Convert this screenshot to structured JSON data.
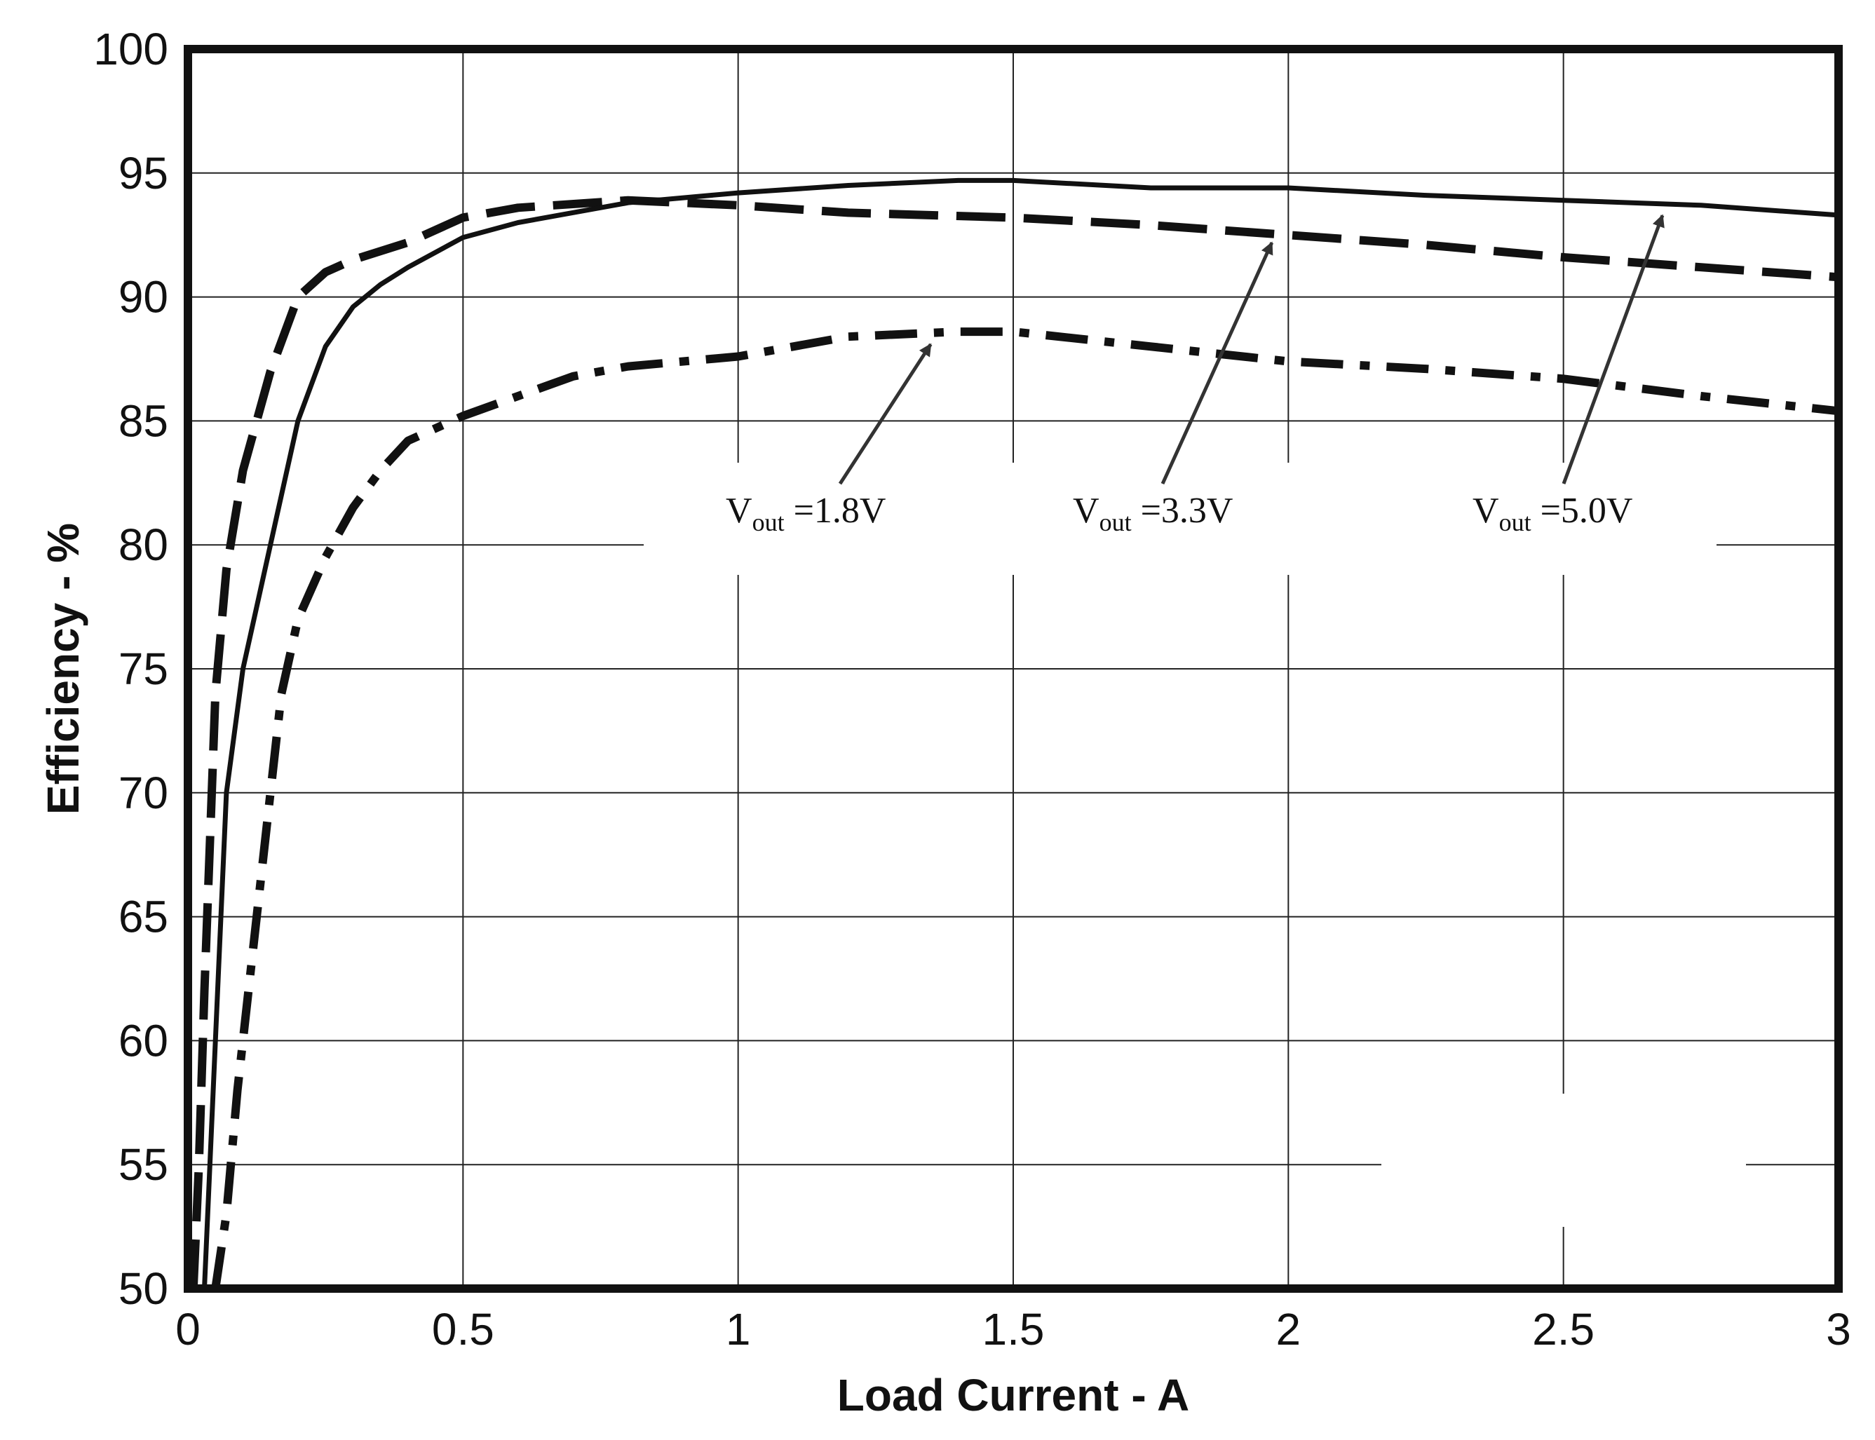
{
  "chart_data": {
    "type": "line",
    "title": "",
    "xlabel": "Load Current - A",
    "ylabel": "Efficiency - %",
    "xlim": [
      0,
      3
    ],
    "ylim": [
      50,
      100
    ],
    "x_ticks": [
      0,
      0.5,
      1,
      1.5,
      2,
      2.5,
      3
    ],
    "x_tick_labels": [
      "0",
      "0.5",
      "1",
      "1.5",
      "2",
      "2.5",
      "3"
    ],
    "y_ticks": [
      50,
      55,
      60,
      65,
      70,
      75,
      80,
      85,
      90,
      95,
      100
    ],
    "y_tick_labels": [
      "50",
      "55",
      "60",
      "65",
      "70",
      "75",
      "80",
      "85",
      "90",
      "95",
      "100"
    ],
    "grid": true,
    "legend": "none",
    "series": [
      {
        "name": "Vout =5.0V",
        "label_main": "V",
        "label_sub": "out",
        "label_rest": " =5.0V",
        "style": "dashed",
        "color": "#111111",
        "x": [
          0.01,
          0.02,
          0.03,
          0.04,
          0.05,
          0.07,
          0.1,
          0.15,
          0.2,
          0.25,
          0.3,
          0.4,
          0.5,
          0.6,
          0.8,
          1.0,
          1.2,
          1.5,
          1.75,
          2.0,
          2.25,
          2.5,
          2.75,
          3.0
        ],
        "y": [
          50,
          55,
          62,
          68,
          74,
          79,
          83,
          87,
          90,
          91,
          91.5,
          92.2,
          93.2,
          93.6,
          93.9,
          93.7,
          93.4,
          93.2,
          92.9,
          92.5,
          92.1,
          91.6,
          91.2,
          90.8
        ]
      },
      {
        "name": "Vout =3.3V",
        "label_main": "V",
        "label_sub": "out",
        "label_rest": " =3.3V",
        "style": "solid",
        "color": "#111111",
        "x": [
          0.03,
          0.05,
          0.07,
          0.1,
          0.13,
          0.16,
          0.2,
          0.25,
          0.3,
          0.35,
          0.4,
          0.5,
          0.6,
          0.8,
          1.0,
          1.2,
          1.4,
          1.5,
          1.75,
          2.0,
          2.25,
          2.5,
          2.75,
          3.0
        ],
        "y": [
          50,
          60,
          70,
          75,
          78,
          81,
          85,
          88,
          89.6,
          90.5,
          91.2,
          92.4,
          93.0,
          93.8,
          94.2,
          94.5,
          94.7,
          94.7,
          94.4,
          94.4,
          94.1,
          93.9,
          93.7,
          93.3
        ]
      },
      {
        "name": "Vout =1.8V",
        "label_main": "V",
        "label_sub": "out",
        "label_rest": " =1.8V",
        "style": "dash-dot",
        "color": "#111111",
        "x": [
          0.05,
          0.07,
          0.09,
          0.11,
          0.13,
          0.15,
          0.17,
          0.2,
          0.25,
          0.3,
          0.35,
          0.4,
          0.5,
          0.6,
          0.7,
          0.8,
          1.0,
          1.2,
          1.4,
          1.5,
          1.75,
          2.0,
          2.25,
          2.5,
          2.75,
          3.0
        ],
        "y": [
          50,
          53,
          58,
          62,
          66,
          70,
          74,
          77,
          79.5,
          81.5,
          83,
          84.2,
          85.2,
          86,
          86.8,
          87.2,
          87.6,
          88.4,
          88.6,
          88.6,
          88.0,
          87.4,
          87.1,
          86.7,
          86.0,
          85.4
        ]
      }
    ],
    "annotations": [
      {
        "series": "Vout =1.8V",
        "arrow_to_x": 1.35,
        "arrow_to_y": 88.6
      },
      {
        "series": "Vout =3.3V",
        "arrow_to_x": 1.97,
        "arrow_to_y": 92.7
      },
      {
        "series": "Vout =5.0V",
        "arrow_to_x": 2.68,
        "arrow_to_y": 93.8
      }
    ]
  }
}
